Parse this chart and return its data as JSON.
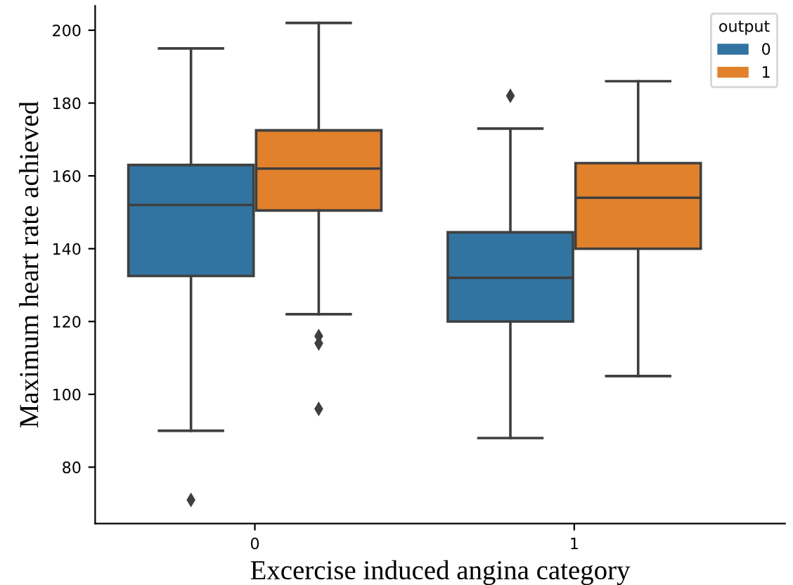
{
  "chart_data": {
    "type": "box",
    "xlabel": "Excercise induced angina category",
    "ylabel": "Maximum heart rate achieved",
    "categories": [
      "0",
      "1"
    ],
    "legend_title": "output",
    "legend": "top right",
    "grid": false,
    "ylim": [
      64.5,
      206.7
    ],
    "yticks": [
      80,
      100,
      120,
      140,
      160,
      180,
      200
    ],
    "series": [
      {
        "name": "0",
        "color": "#3274a1",
        "boxes": [
          {
            "low": 90,
            "q1": 132.5,
            "median": 152,
            "q3": 163,
            "high": 195,
            "outliers": [
              71
            ]
          },
          {
            "low": 88,
            "q1": 120,
            "median": 132,
            "q3": 144.5,
            "high": 173,
            "outliers": [
              182
            ]
          }
        ]
      },
      {
        "name": "1",
        "color": "#e1812c",
        "boxes": [
          {
            "low": 122,
            "q1": 150.5,
            "median": 162,
            "q3": 172.5,
            "high": 202,
            "outliers": [
              116,
              114,
              96
            ]
          },
          {
            "low": 105,
            "q1": 140,
            "median": 154,
            "q3": 163.5,
            "high": 186
          }
        ]
      }
    ]
  }
}
